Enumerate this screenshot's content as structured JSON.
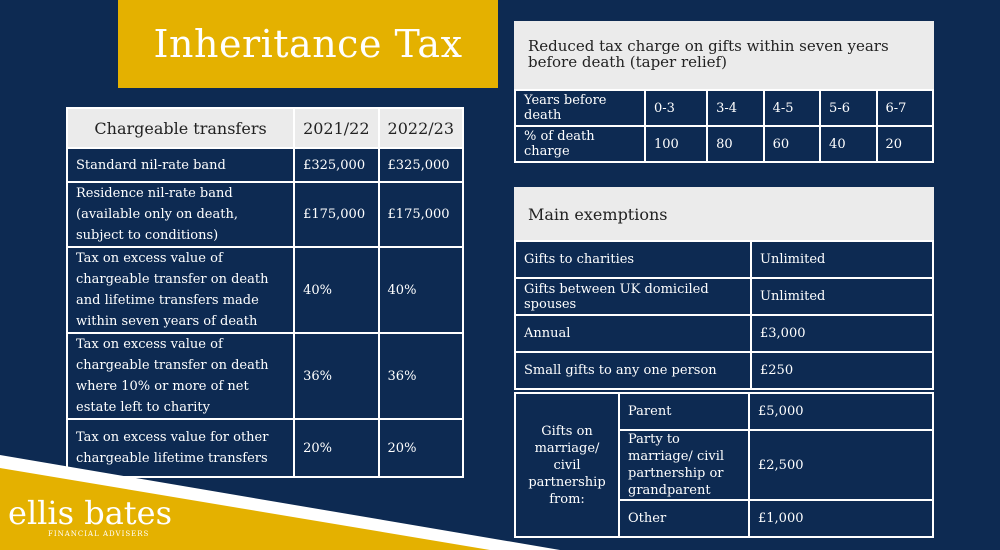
{
  "title": "Inheritance Tax",
  "chargeable": {
    "header": "Chargeable transfers",
    "years": [
      "2021/22",
      "2022/23"
    ],
    "rows": [
      {
        "label": "Standard nil-rate band",
        "v1": "£325,000",
        "v2": "£325,000"
      },
      {
        "label": "Residence nil-rate band (available only on death, subject to conditions)",
        "v1": "£175,000",
        "v2": "£175,000"
      },
      {
        "label": "Tax on excess value of chargeable transfer on death and lifetime transfers made within seven years of death",
        "v1": "40%",
        "v2": "40%"
      },
      {
        "label": "Tax on excess value of chargeable transfer on death where 10% or more of net estate left to charity",
        "v1": "36%",
        "v2": "36%"
      },
      {
        "label": "Tax on excess value for other chargeable lifetime transfers",
        "v1": "20%",
        "v2": "20%"
      }
    ]
  },
  "taper": {
    "header": "Reduced tax charge on gifts within seven years before death (taper relief)",
    "years_label": "Years before death",
    "years": [
      "0-3",
      "3-4",
      "4-5",
      "5-6",
      "6-7"
    ],
    "pct_label": "% of death charge",
    "pcts": [
      "100",
      "80",
      "60",
      "40",
      "20"
    ]
  },
  "exemptions": {
    "header": "Main exemptions",
    "rows": [
      {
        "label": "Gifts to charities",
        "value": "Unlimited"
      },
      {
        "label": "Gifts  between UK domiciled spouses",
        "value": "Unlimited"
      },
      {
        "label": "Annual",
        "value": "£3,000"
      },
      {
        "label": "Small gifts to any one person",
        "value": "£250"
      }
    ],
    "marriage": {
      "group_label": "Gifts on marriage/ civil partnership from:",
      "rows": [
        {
          "label": "Parent",
          "value": "£5,000"
        },
        {
          "label": "Party to marriage/ civil partnership or grandparent",
          "value": "£2,500"
        },
        {
          "label": "Other",
          "value": "£1,000"
        }
      ]
    }
  },
  "brand": {
    "name": "ellis bates",
    "sub": "FINANCIAL ADVISERS",
    "accent": "#e4b100",
    "background": "#0d2a52"
  }
}
